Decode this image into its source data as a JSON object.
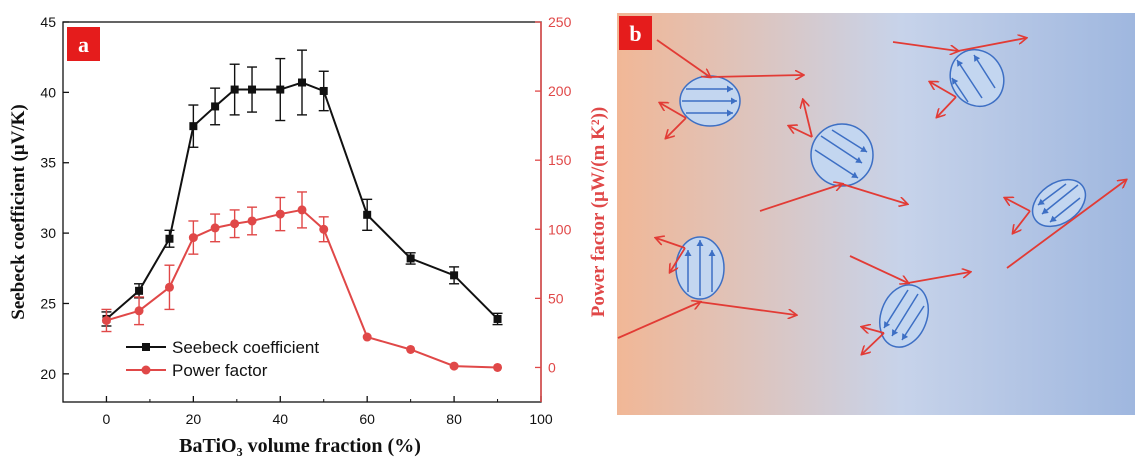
{
  "panel_a": {
    "label": "a"
  },
  "panel_b": {
    "label": "b"
  },
  "colors": {
    "seebeck": "#111111",
    "power": "#e04848",
    "panel_label_bg": "#e51c1c",
    "gradient_left": "#f1b796",
    "gradient_right": "#9fb7df",
    "particle_fill": "#c3d6f0",
    "particle_stroke": "#3d6fc4",
    "arrow_red": "#e23b35",
    "arrow_blue": "#3d6fc4"
  },
  "chart_data": {
    "type": "line",
    "xlabel": "BaTiO₃ volume fraction (%)",
    "ylabel_left": "Seebeck coefficient (μV/K)",
    "ylabel_right": "Power factor (μW/(m K²))",
    "xlim": [
      -10,
      100
    ],
    "ylim_left": [
      18,
      45
    ],
    "ylim_right": [
      -25,
      250
    ],
    "x_ticks": [
      0,
      20,
      40,
      60,
      80,
      100
    ],
    "y_left_ticks": [
      20,
      25,
      30,
      35,
      40,
      45
    ],
    "y_right_ticks": [
      0,
      50,
      100,
      150,
      200,
      250
    ],
    "legend_position": "bottom-left",
    "series": [
      {
        "name": "Seebeck coefficient",
        "axis": "left",
        "marker": "square",
        "x": [
          0,
          7.5,
          14.5,
          20,
          25,
          29.5,
          33.5,
          40,
          45,
          50,
          60,
          70,
          80,
          90
        ],
        "y": [
          23.9,
          25.9,
          29.6,
          37.6,
          39.0,
          40.2,
          40.2,
          40.2,
          40.7,
          40.1,
          31.3,
          28.2,
          27.0,
          23.9
        ],
        "err": [
          0.5,
          0.5,
          0.6,
          1.5,
          1.3,
          1.8,
          1.6,
          2.2,
          2.3,
          1.4,
          1.1,
          0.4,
          0.6,
          0.4
        ]
      },
      {
        "name": "Power factor",
        "axis": "right",
        "marker": "circle",
        "x": [
          0,
          7.5,
          14.5,
          20,
          25,
          29.5,
          33.5,
          40,
          45,
          50,
          60,
          70,
          80,
          90
        ],
        "y": [
          34,
          41,
          58,
          94,
          101,
          104,
          106,
          111,
          114,
          100,
          22,
          13,
          1,
          0
        ],
        "err": [
          8,
          10,
          16,
          12,
          10,
          10,
          10,
          12,
          13,
          9,
          0,
          0,
          0,
          0
        ]
      }
    ]
  }
}
